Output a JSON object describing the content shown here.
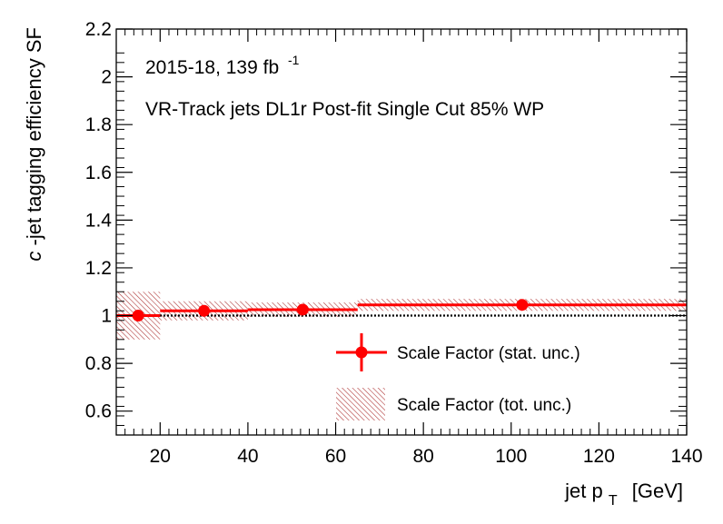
{
  "chart_data": {
    "type": "scatter",
    "xlabel": "jet p",
    "xlabel_sub": "T",
    "xlabel_unit": "[GeV]",
    "ylabel_italic": "c",
    "ylabel_rest": "-jet tagging efficiency SF",
    "xlim": [
      10,
      140
    ],
    "ylim": [
      0.5,
      2.2
    ],
    "x_ticks": [
      20,
      40,
      60,
      80,
      100,
      120,
      140
    ],
    "y_ticks": [
      0.6,
      0.8,
      1,
      1.2,
      1.4,
      1.6,
      1.8,
      2,
      2.2
    ],
    "x_tick_labels": [
      "20",
      "40",
      "60",
      "80",
      "100",
      "120",
      "140"
    ],
    "y_tick_labels": [
      "0.6",
      "0.8",
      "1",
      "1.2",
      "1.4",
      "1.6",
      "1.8",
      "2",
      "2.2"
    ],
    "annotations": {
      "line1_main": "2015-18, 139 fb",
      "line1_sup": "-1",
      "line2": "VR-Track jets DL1r Post-fit Single Cut 85% WP"
    },
    "reference_line": 1.0,
    "legend_position": "bottom-right",
    "legend": {
      "stat": "Scale Factor (stat. unc.)",
      "tot": "Scale Factor (tot. unc.)"
    },
    "colors": {
      "marker": "#ff0000",
      "band": "#b03c3c"
    },
    "bins": [
      {
        "x_low": 10,
        "x_high": 20,
        "x": 15,
        "value": 1.0,
        "stat_unc": 0.005,
        "tot_unc": 0.1
      },
      {
        "x_low": 20,
        "x_high": 40,
        "x": 30,
        "value": 1.02,
        "stat_unc": 0.005,
        "tot_unc": 0.04
      },
      {
        "x_low": 40,
        "x_high": 65,
        "x": 52.5,
        "value": 1.025,
        "stat_unc": 0.005,
        "tot_unc": 0.03
      },
      {
        "x_low": 65,
        "x_high": 140,
        "x": 102.5,
        "value": 1.045,
        "stat_unc": 0.005,
        "tot_unc": 0.025
      }
    ]
  }
}
